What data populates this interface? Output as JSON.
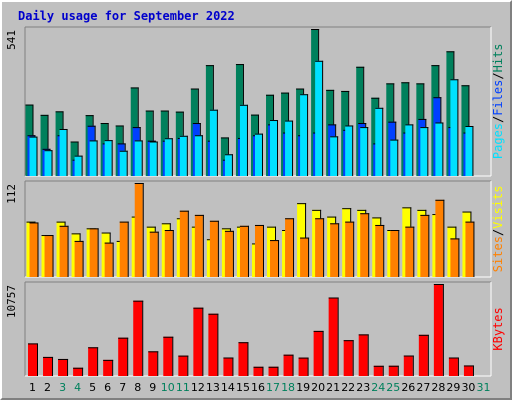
{
  "title": "Daily usage for September 2022",
  "colors": {
    "title": "#0000cc",
    "hits": "#00805c",
    "files": "#0040ff",
    "pages": "#00e0ff",
    "visits": "#ffff00",
    "sites": "#ff8000",
    "kbytes": "#ff0000",
    "weekend_label": "#00805c",
    "weekday_label": "#000000",
    "panel_bg": "#c0c0c0"
  },
  "chart_data": [
    {
      "type": "bar",
      "name": "hits-files-pages",
      "ymax_label": "541",
      "ylim": [
        0,
        541
      ],
      "legend": [
        "Pages",
        "/",
        "Files",
        "/",
        "Hits"
      ],
      "x": [
        1,
        2,
        3,
        4,
        5,
        6,
        7,
        8,
        9,
        10,
        11,
        12,
        13,
        14,
        15,
        16,
        17,
        18,
        19,
        20,
        21,
        22,
        23,
        24,
        25,
        26,
        27,
        28,
        29,
        30
      ],
      "series": [
        {
          "name": "Hits",
          "values": [
            263,
            225,
            238,
            127,
            224,
            195,
            186,
            326,
            241,
            241,
            237,
            322,
            408,
            142,
            412,
            226,
            299,
            307,
            322,
            541,
            317,
            313,
            402,
            288,
            341,
            345,
            341,
            408,
            459,
            334
          ]
        },
        {
          "name": "Files",
          "values": [
            150,
            100,
            150,
            60,
            185,
            120,
            120,
            180,
            130,
            130,
            140,
            195,
            130,
            60,
            140,
            150,
            190,
            160,
            150,
            160,
            190,
            170,
            195,
            120,
            200,
            160,
            210,
            290,
            180,
            160
          ]
        },
        {
          "name": "Pages",
          "values": [
            145,
            95,
            173,
            75,
            131,
            132,
            93,
            131,
            127,
            139,
            148,
            150,
            244,
            80,
            262,
            156,
            206,
            204,
            301,
            424,
            146,
            186,
            180,
            251,
            134,
            190,
            180,
            197,
            356,
            184
          ]
        }
      ]
    },
    {
      "type": "bar",
      "name": "visits-sites",
      "ymax_label": "112",
      "ylim": [
        0,
        112
      ],
      "legend": [
        "Sites",
        "/",
        "Visits"
      ],
      "x": [
        1,
        2,
        3,
        4,
        5,
        6,
        7,
        8,
        9,
        10,
        11,
        12,
        13,
        14,
        15,
        16,
        17,
        18,
        19,
        20,
        21,
        22,
        23,
        24,
        25,
        26,
        27,
        28,
        29,
        30
      ],
      "series": [
        {
          "name": "Visits",
          "values": [
            66,
            50,
            66,
            52,
            58,
            53,
            43,
            72,
            60,
            64,
            70,
            60,
            45,
            58,
            60,
            40,
            60,
            56,
            88,
            80,
            72,
            82,
            80,
            71,
            56,
            83,
            80,
            75,
            60,
            78
          ]
        },
        {
          "name": "Sites",
          "values": [
            65,
            50,
            61,
            43,
            58,
            41,
            66,
            112,
            54,
            56,
            79,
            74,
            67,
            55,
            61,
            62,
            44,
            70,
            47,
            70,
            64,
            66,
            76,
            62,
            56,
            60,
            74,
            92,
            46,
            66
          ]
        }
      ]
    },
    {
      "type": "bar",
      "name": "kbytes",
      "ymax_label": "10757",
      "ylim": [
        0,
        10757
      ],
      "legend": [
        "KBytes"
      ],
      "x": [
        1,
        2,
        3,
        4,
        5,
        6,
        7,
        8,
        9,
        10,
        11,
        12,
        13,
        14,
        15,
        16,
        17,
        18,
        19,
        20,
        21,
        22,
        23,
        24,
        25,
        26,
        27,
        28,
        29,
        30
      ],
      "series": [
        {
          "name": "KBytes",
          "values": [
            3813,
            2231,
            1992,
            966,
            3359,
            1885,
            4480,
            8807,
            2887,
            4592,
            2386,
            7988,
            7282,
            2164,
            3951,
            1079,
            1082,
            2493,
            2153,
            5273,
            9179,
            4190,
            4868,
            1193,
            1200,
            2396,
            4815,
            10757,
            2164,
            1234
          ]
        }
      ]
    }
  ],
  "x_axis": {
    "labels": [
      "1",
      "2",
      "3",
      "4",
      "5",
      "6",
      "7",
      "8",
      "9",
      "10",
      "11",
      "12",
      "13",
      "14",
      "15",
      "16",
      "17",
      "18",
      "19",
      "20",
      "21",
      "22",
      "23",
      "24",
      "25",
      "26",
      "27",
      "28",
      "29",
      "30",
      "31"
    ],
    "weekend": [
      3,
      4,
      10,
      11,
      17,
      18,
      24,
      25,
      31
    ]
  }
}
